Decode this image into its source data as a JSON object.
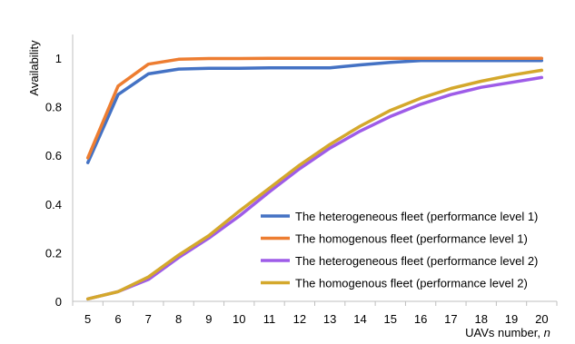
{
  "chart_data": {
    "type": "line",
    "xlabel": "UAVs number, ",
    "xlabel_var": "n",
    "ylabel": "Availability",
    "x": [
      5,
      6,
      7,
      8,
      9,
      10,
      11,
      12,
      13,
      14,
      15,
      16,
      17,
      18,
      19,
      20
    ],
    "ylim": [
      0,
      1
    ],
    "yticks": [
      "0",
      "0.2",
      "0.4",
      "0.6",
      "0.8",
      "1"
    ],
    "grid": false,
    "legend_position": "bottom-right",
    "series": [
      {
        "name": "The heterogeneous fleet (performance level 1)",
        "color": "#4472C4",
        "values": [
          0.57,
          0.85,
          0.935,
          0.955,
          0.958,
          0.958,
          0.96,
          0.96,
          0.96,
          0.972,
          0.982,
          0.99,
          0.99,
          0.99,
          0.99,
          0.99
        ]
      },
      {
        "name": "The homogenous fleet (performance level 1)",
        "color": "#ED7D31",
        "values": [
          0.59,
          0.885,
          0.975,
          0.995,
          0.998,
          0.998,
          0.999,
          0.999,
          0.999,
          0.999,
          0.999,
          0.999,
          0.999,
          0.999,
          0.999,
          0.999
        ]
      },
      {
        "name": "The heterogeneous fleet (performance level 2)",
        "color": "#9E5CE8",
        "values": [
          0.01,
          0.04,
          0.09,
          0.18,
          0.26,
          0.35,
          0.45,
          0.545,
          0.63,
          0.7,
          0.76,
          0.81,
          0.85,
          0.88,
          0.9,
          0.92
        ]
      },
      {
        "name": "The homogenous fleet (performance level 2)",
        "color": "#D4A82C",
        "values": [
          0.01,
          0.04,
          0.1,
          0.19,
          0.27,
          0.37,
          0.465,
          0.56,
          0.645,
          0.72,
          0.785,
          0.835,
          0.875,
          0.905,
          0.93,
          0.95
        ]
      }
    ]
  }
}
